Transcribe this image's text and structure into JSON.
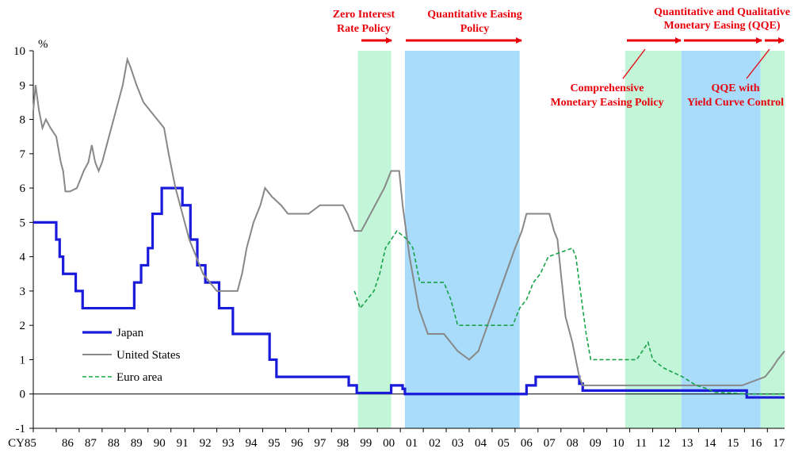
{
  "chart_data": {
    "type": "line",
    "ylabel": "%",
    "ylim": [
      -1,
      10
    ],
    "xlim": [
      1985.0,
      2017.75
    ],
    "x_ticks": [
      "CY85",
      "86",
      "87",
      "88",
      "89",
      "90",
      "91",
      "92",
      "93",
      "94",
      "95",
      "96",
      "97",
      "98",
      "99",
      "00",
      "01",
      "02",
      "03",
      "04",
      "05",
      "06",
      "07",
      "08",
      "09",
      "10",
      "11",
      "12",
      "13",
      "14",
      "15",
      "16",
      "17"
    ],
    "y_ticks": [
      "-1",
      "0",
      "1",
      "2",
      "3",
      "4",
      "5",
      "6",
      "7",
      "8",
      "9",
      "10"
    ],
    "grid": false,
    "legend_position": "lower-left",
    "colors": {
      "Japan": "#1a1adb",
      "United States": "#888888",
      "Euro area": "#17a34a",
      "policy_text": "#e8000b",
      "band_green": "#c3f5d9",
      "band_blue": "#a8dcfa"
    },
    "series": [
      {
        "name": "Japan",
        "style": "step-solid",
        "x": [
          1985.0,
          1986.0,
          1986.15,
          1986.3,
          1986.85,
          1987.15,
          1989.4,
          1989.7,
          1990.0,
          1990.2,
          1990.6,
          1991.5,
          1991.85,
          1992.15,
          1992.5,
          1993.1,
          1993.7,
          1995.3,
          1995.6,
          1998.75,
          1999.1,
          2000.6,
          2001.1,
          2001.2,
          2006.5,
          2006.9,
          2007.3,
          2008.8,
          2008.95,
          2016.1,
          2017.75
        ],
        "values": [
          5.0,
          4.5,
          4.0,
          3.5,
          3.0,
          2.5,
          3.25,
          3.75,
          4.25,
          5.25,
          6.0,
          5.5,
          4.5,
          3.75,
          3.25,
          2.5,
          1.75,
          1.0,
          0.5,
          0.25,
          0.03,
          0.25,
          0.15,
          0.0,
          0.25,
          0.5,
          0.5,
          0.3,
          0.1,
          -0.1,
          -0.1
        ]
      },
      {
        "name": "United States",
        "style": "solid",
        "x": [
          1985.0,
          1985.1,
          1985.25,
          1985.4,
          1985.55,
          1985.75,
          1986.0,
          1986.2,
          1986.3,
          1986.4,
          1986.6,
          1986.9,
          1987.2,
          1987.4,
          1987.55,
          1987.7,
          1987.85,
          1988.0,
          1988.3,
          1988.6,
          1988.9,
          1989.1,
          1989.25,
          1989.5,
          1989.8,
          1990.1,
          1990.4,
          1990.7,
          1990.9,
          1991.2,
          1991.5,
          1991.8,
          1992.1,
          1992.4,
          1992.7,
          1993.0,
          1993.5,
          1993.9,
          1994.1,
          1994.3,
          1994.6,
          1994.9,
          1995.1,
          1995.4,
          1995.8,
          1996.1,
          1996.5,
          1997.0,
          1997.5,
          1998.0,
          1998.5,
          1998.7,
          1998.85,
          1999.0,
          1999.3,
          1999.5,
          1999.7,
          1999.9,
          2000.1,
          2000.3,
          2000.45,
          2000.6,
          2000.95,
          2001.1,
          2001.4,
          2001.8,
          2002.2,
          2002.9,
          2003.5,
          2004.0,
          2004.4,
          2004.8,
          2005.2,
          2005.6,
          2006.0,
          2006.3,
          2006.5,
          2007.0,
          2007.5,
          2007.7,
          2007.85,
          2008.0,
          2008.2,
          2008.5,
          2008.8,
          2008.95,
          2015.9,
          2016.9,
          2017.2,
          2017.45,
          2017.75
        ],
        "values": [
          8.25,
          9.0,
          8.25,
          7.75,
          8.0,
          7.75,
          7.5,
          6.75,
          6.5,
          5.9,
          5.9,
          6.0,
          6.5,
          6.75,
          7.25,
          6.75,
          6.5,
          6.75,
          7.5,
          8.25,
          9.0,
          9.75,
          9.5,
          9.0,
          8.5,
          8.25,
          8.0,
          7.75,
          7.0,
          6.0,
          5.25,
          4.5,
          4.0,
          3.5,
          3.25,
          3.0,
          3.0,
          3.0,
          3.5,
          4.25,
          5.0,
          5.5,
          6.0,
          5.75,
          5.5,
          5.25,
          5.25,
          5.25,
          5.5,
          5.5,
          5.5,
          5.25,
          5.0,
          4.75,
          4.75,
          5.0,
          5.25,
          5.5,
          5.75,
          6.0,
          6.25,
          6.5,
          6.5,
          5.5,
          4.0,
          2.5,
          1.75,
          1.75,
          1.25,
          1.0,
          1.25,
          2.0,
          2.75,
          3.5,
          4.25,
          4.75,
          5.25,
          5.25,
          5.25,
          4.75,
          4.5,
          3.5,
          2.25,
          1.5,
          0.5,
          0.25,
          0.25,
          0.5,
          0.75,
          1.0,
          1.25
        ]
      },
      {
        "name": "Euro area",
        "style": "dashed",
        "x": [
          1999.0,
          1999.25,
          1999.85,
          2000.1,
          2000.35,
          2000.6,
          2000.85,
          2001.3,
          2001.55,
          2001.85,
          2002.9,
          2003.2,
          2003.5,
          2005.9,
          2006.2,
          2006.5,
          2006.8,
          2007.1,
          2007.45,
          2008.5,
          2008.65,
          2008.8,
          2008.95,
          2009.1,
          2009.3,
          2011.3,
          2011.55,
          2011.8,
          2012.0,
          2012.5,
          2013.3,
          2013.9,
          2014.4,
          2014.7,
          2016.2,
          2017.75
        ],
        "values": [
          3.0,
          2.5,
          3.0,
          3.5,
          4.25,
          4.5,
          4.75,
          4.5,
          4.25,
          3.25,
          3.25,
          2.75,
          2.0,
          2.0,
          2.5,
          2.75,
          3.25,
          3.5,
          4.0,
          4.25,
          4.0,
          3.25,
          2.5,
          1.75,
          1.0,
          1.0,
          1.25,
          1.5,
          1.0,
          0.75,
          0.5,
          0.25,
          0.15,
          0.05,
          0.0,
          0.0
        ]
      }
    ],
    "policy_periods": [
      {
        "name": "Zero Interest Rate Policy",
        "start": 1999.15,
        "end": 2000.6,
        "color": "green"
      },
      {
        "name": "Quantitative Easing Policy",
        "start": 2001.2,
        "end": 2006.2,
        "color": "blue"
      },
      {
        "name": "Comprehensive Monetary Easing Policy",
        "start": 2010.8,
        "end": 2013.25,
        "color": "green"
      },
      {
        "name": "Quantitative and Qualitative Monetary Easing (QQE)",
        "start": 2013.25,
        "end": 2016.7,
        "color": "blue"
      },
      {
        "name": "QQE with Yield Curve Control",
        "start": 2016.7,
        "end": 2017.75,
        "color": "green"
      }
    ],
    "annotations": {
      "zirp": [
        "Zero Interest",
        "Rate Policy"
      ],
      "qe": [
        "Quantitative Easing",
        "Policy"
      ],
      "cme": [
        "Comprehensive",
        "Monetary Easing Policy"
      ],
      "qqe": [
        "Quantitative and Qualitative",
        "Monetary Easing (QQE)"
      ],
      "ycc": [
        "QQE with",
        "Yield Curve Control"
      ]
    }
  }
}
